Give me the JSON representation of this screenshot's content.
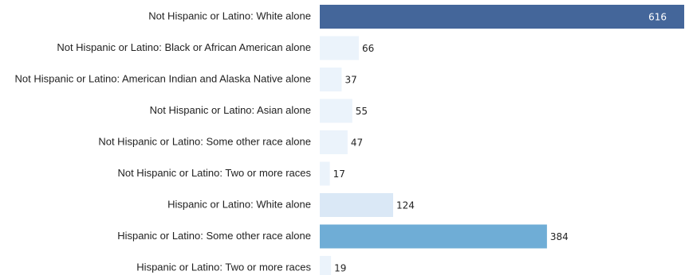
{
  "chart_data": {
    "type": "bar",
    "orientation": "horizontal",
    "title": "",
    "xlabel": "",
    "ylabel": "",
    "categories": [
      "Not Hispanic or Latino: White alone",
      "Not Hispanic or Latino: Black or African American alone",
      "Not Hispanic or Latino: American Indian and Alaska Native alone",
      "Not Hispanic or Latino: Asian alone",
      "Not Hispanic or Latino: Some other race alone",
      "Not Hispanic or Latino: Two or more races",
      "Hispanic or Latino: White alone",
      "Hispanic or Latino: Some other race alone",
      "Hispanic or Latino: Two or more races"
    ],
    "values": [
      616,
      66,
      37,
      55,
      47,
      17,
      124,
      384,
      19
    ],
    "xlim": [
      0,
      616
    ],
    "grid": false,
    "legend": "none",
    "colors": {
      "max": "#44669a",
      "high": "#6fadd6",
      "mid": "#dae8f6",
      "low": "#ebf3fb"
    }
  }
}
